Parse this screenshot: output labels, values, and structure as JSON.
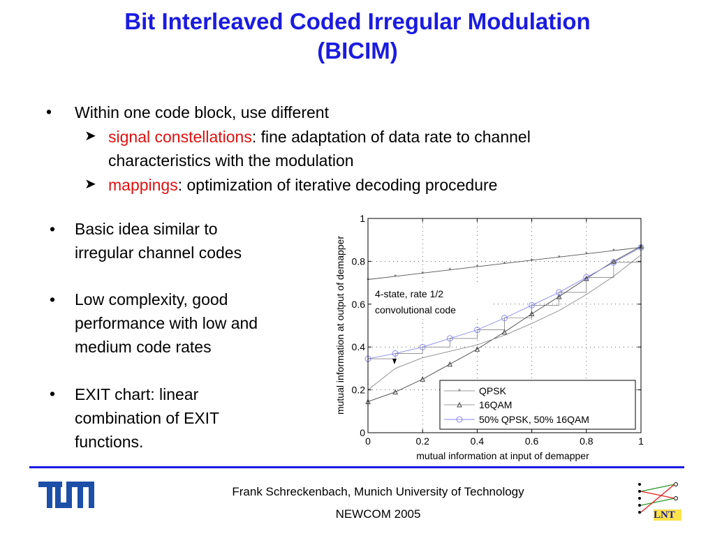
{
  "slide": {
    "title_line1": "Bit Interleaved Coded Irregular Modulation",
    "title_line2": "(BICIM)",
    "top_bullet": "Within one code block, use different",
    "sub1_red": "signal constellations",
    "sub1_rest": ": fine adaptation of data rate to channel",
    "sub1_cont": "characteristics with the modulation",
    "sub2_red": "mappings",
    "sub2_rest": ": optimization of iterative decoding procedure",
    "left_bullets": [
      [
        "Basic idea similar to",
        "irregular channel codes"
      ],
      [
        "Low complexity, good",
        "performance with low and",
        "medium code rates"
      ],
      [
        "EXIT chart: linear",
        "combination of EXIT",
        "functions."
      ]
    ],
    "footer_line1": "Frank Schreckenbach, Munich University of Technology",
    "footer_line2": "NEWCOM 2005",
    "logo_left": "TUM",
    "logo_right": "LNT",
    "colors": {
      "title": "#1b1be0",
      "highlight": "#e01010",
      "rule": "#1b1be0"
    }
  },
  "chart_data": {
    "type": "line",
    "xlabel": "mutual information at input of demapper",
    "ylabel": "mutual information at output of demapper",
    "xlim": [
      0,
      1
    ],
    "ylim": [
      0,
      1
    ],
    "xticks": [
      "0",
      "0.2",
      "0.4",
      "0.6",
      "0.8",
      "1"
    ],
    "yticks": [
      "0",
      "0.2",
      "0.4",
      "0.6",
      "0.8",
      "1"
    ],
    "grid": true,
    "legend_position": "bottom-right",
    "annotation": [
      "4-state, rate 1/2",
      "convolutional code"
    ],
    "series": [
      {
        "name": "QPSK",
        "marker": "star",
        "color": "#555555",
        "x": [
          0,
          0.1,
          0.2,
          0.3,
          0.4,
          0.5,
          0.6,
          0.7,
          0.8,
          0.9,
          1.0
        ],
        "y": [
          0.715,
          0.73,
          0.745,
          0.76,
          0.775,
          0.79,
          0.805,
          0.82,
          0.835,
          0.85,
          0.865
        ]
      },
      {
        "name": "16QAM",
        "marker": "triangle",
        "color": "#444444",
        "x": [
          0,
          0.1,
          0.2,
          0.3,
          0.4,
          0.5,
          0.6,
          0.7,
          0.8,
          0.9,
          1.0
        ],
        "y": [
          0.145,
          0.19,
          0.25,
          0.32,
          0.39,
          0.47,
          0.555,
          0.635,
          0.72,
          0.8,
          0.87
        ]
      },
      {
        "name": "50% QPSK, 50% 16QAM",
        "marker": "circle",
        "color": "#8a8aee",
        "x": [
          0,
          0.1,
          0.2,
          0.3,
          0.4,
          0.5,
          0.6,
          0.7,
          0.8,
          0.9,
          1.0
        ],
        "y": [
          0.345,
          0.37,
          0.4,
          0.44,
          0.48,
          0.535,
          0.595,
          0.655,
          0.725,
          0.795,
          0.865
        ]
      },
      {
        "name": "",
        "marker": "none",
        "color": "#888888",
        "x": [
          0,
          0.1,
          0.2,
          0.3,
          0.4,
          0.5,
          0.6,
          0.7,
          0.8,
          0.9,
          1.0
        ],
        "y": [
          0.2,
          0.3,
          0.35,
          0.38,
          0.41,
          0.455,
          0.51,
          0.57,
          0.645,
          0.73,
          0.83
        ]
      }
    ]
  }
}
